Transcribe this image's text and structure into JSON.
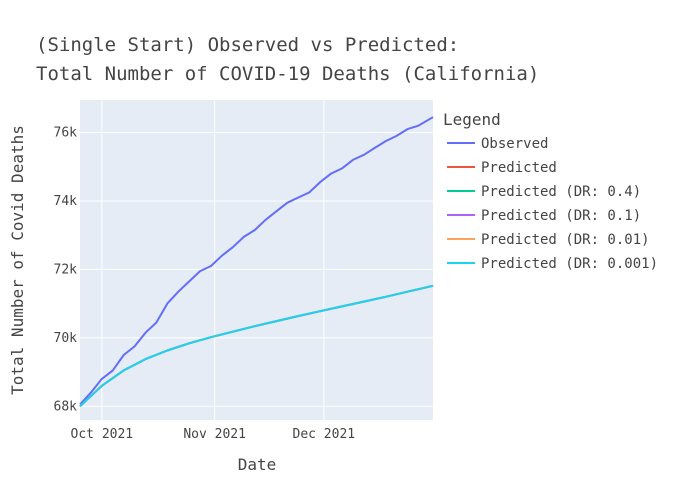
{
  "chart_data": {
    "type": "line",
    "title_lines": [
      "(Single Start) Observed vs Predicted:",
      "Total Number of COVID-19 Deaths (California)"
    ],
    "xlabel": "Date",
    "ylabel": "Total Number of Covid Deaths",
    "x_range": [
      "2021-09-25",
      "2021-12-31"
    ],
    "ylim": [
      67600,
      76950
    ],
    "x_ticks": [
      {
        "date": "2021-10-01",
        "label": "Oct 2021"
      },
      {
        "date": "2021-11-01",
        "label": "Nov 2021"
      },
      {
        "date": "2021-12-01",
        "label": "Dec 2021"
      }
    ],
    "y_ticks": [
      {
        "value": 68000,
        "label": "68k"
      },
      {
        "value": 70000,
        "label": "70k"
      },
      {
        "value": 72000,
        "label": "72k"
      },
      {
        "value": 74000,
        "label": "74k"
      },
      {
        "value": 76000,
        "label": "76k"
      }
    ],
    "grid": true,
    "plot_background": "#E5ECF6",
    "legend": {
      "title": "Legend",
      "position": "right"
    },
    "series": [
      {
        "name": "Observed",
        "color": "#636EFA",
        "x": [
          "2021-09-25",
          "2021-09-28",
          "2021-10-01",
          "2021-10-04",
          "2021-10-07",
          "2021-10-10",
          "2021-10-13",
          "2021-10-16",
          "2021-10-19",
          "2021-10-22",
          "2021-10-25",
          "2021-10-28",
          "2021-10-31",
          "2021-11-03",
          "2021-11-06",
          "2021-11-09",
          "2021-11-12",
          "2021-11-15",
          "2021-11-18",
          "2021-11-21",
          "2021-11-24",
          "2021-11-27",
          "2021-11-30",
          "2021-12-03",
          "2021-12-06",
          "2021-12-09",
          "2021-12-12",
          "2021-12-15",
          "2021-12-18",
          "2021-12-21",
          "2021-12-24",
          "2021-12-27",
          "2021-12-31"
        ],
        "y": [
          68050,
          68400,
          68800,
          69050,
          69500,
          69750,
          70150,
          70450,
          71000,
          71350,
          71650,
          71950,
          72100,
          72400,
          72650,
          72950,
          73150,
          73450,
          73700,
          73950,
          74100,
          74250,
          74550,
          74800,
          74950,
          75200,
          75350,
          75550,
          75750,
          75900,
          76100,
          76200,
          76450
        ]
      },
      {
        "name": "Predicted",
        "color": "#EF553B",
        "x": [
          "2021-09-25",
          "2021-10-01",
          "2021-10-07",
          "2021-10-13",
          "2021-10-19",
          "2021-10-25",
          "2021-10-31",
          "2021-11-06",
          "2021-11-12",
          "2021-11-18",
          "2021-11-24",
          "2021-11-30",
          "2021-12-06",
          "2021-12-12",
          "2021-12-18",
          "2021-12-24",
          "2021-12-31"
        ],
        "y": [
          68000,
          68600,
          69050,
          69380,
          69630,
          69840,
          70020,
          70180,
          70340,
          70490,
          70640,
          70780,
          70920,
          71060,
          71200,
          71350,
          71520
        ]
      },
      {
        "name": "Predicted (DR: 0.4)",
        "color": "#00CC96",
        "x": [
          "2021-09-25",
          "2021-10-01",
          "2021-10-07",
          "2021-10-13",
          "2021-10-19",
          "2021-10-25",
          "2021-10-31",
          "2021-11-06",
          "2021-11-12",
          "2021-11-18",
          "2021-11-24",
          "2021-11-30",
          "2021-12-06",
          "2021-12-12",
          "2021-12-18",
          "2021-12-24",
          "2021-12-31"
        ],
        "y": [
          68000,
          68600,
          69050,
          69380,
          69630,
          69840,
          70020,
          70180,
          70340,
          70490,
          70640,
          70780,
          70920,
          71060,
          71200,
          71350,
          71520
        ]
      },
      {
        "name": "Predicted (DR: 0.1)",
        "color": "#AB63FA",
        "x": [
          "2021-09-25",
          "2021-10-01",
          "2021-10-07",
          "2021-10-13",
          "2021-10-19",
          "2021-10-25",
          "2021-10-31",
          "2021-11-06",
          "2021-11-12",
          "2021-11-18",
          "2021-11-24",
          "2021-11-30",
          "2021-12-06",
          "2021-12-12",
          "2021-12-18",
          "2021-12-24",
          "2021-12-31"
        ],
        "y": [
          68000,
          68600,
          69050,
          69380,
          69630,
          69840,
          70020,
          70180,
          70340,
          70490,
          70640,
          70780,
          70920,
          71060,
          71200,
          71350,
          71520
        ]
      },
      {
        "name": "Predicted (DR: 0.01)",
        "color": "#FFA15A",
        "x": [
          "2021-09-25",
          "2021-10-01",
          "2021-10-07",
          "2021-10-13",
          "2021-10-19",
          "2021-10-25",
          "2021-10-31",
          "2021-11-06",
          "2021-11-12",
          "2021-11-18",
          "2021-11-24",
          "2021-11-30",
          "2021-12-06",
          "2021-12-12",
          "2021-12-18",
          "2021-12-24",
          "2021-12-31"
        ],
        "y": [
          68000,
          68600,
          69050,
          69380,
          69630,
          69840,
          70020,
          70180,
          70340,
          70490,
          70640,
          70780,
          70920,
          71060,
          71200,
          71350,
          71520
        ]
      },
      {
        "name": "Predicted (DR: 0.001)",
        "color": "#19D3F3",
        "x": [
          "2021-09-25",
          "2021-10-01",
          "2021-10-07",
          "2021-10-13",
          "2021-10-19",
          "2021-10-25",
          "2021-10-31",
          "2021-11-06",
          "2021-11-12",
          "2021-11-18",
          "2021-11-24",
          "2021-11-30",
          "2021-12-06",
          "2021-12-12",
          "2021-12-18",
          "2021-12-24",
          "2021-12-31"
        ],
        "y": [
          68000,
          68600,
          69050,
          69380,
          69630,
          69840,
          70020,
          70180,
          70340,
          70490,
          70640,
          70780,
          70920,
          71060,
          71200,
          71350,
          71520
        ]
      }
    ]
  }
}
